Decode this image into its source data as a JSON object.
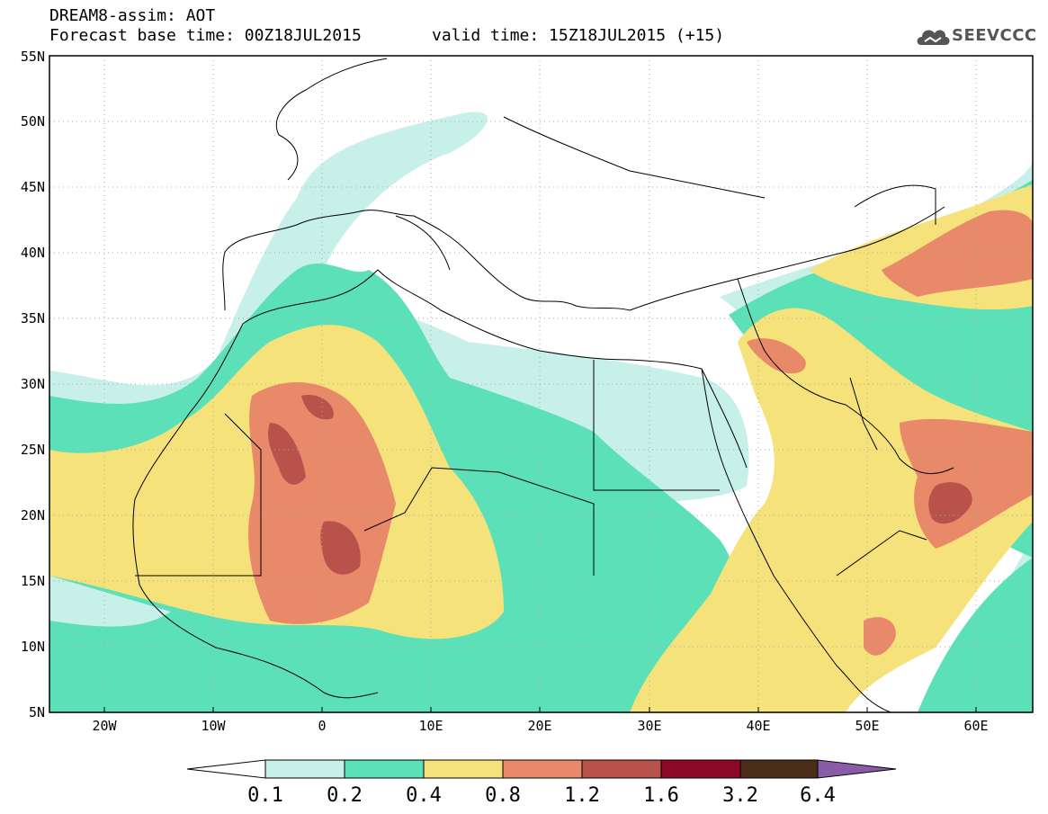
{
  "header": {
    "title": "DREAM8-assim: AOT",
    "base_time": "Forecast base time: 00Z18JUL2015",
    "valid_time": "valid time: 15Z18JUL2015 (+15)"
  },
  "logo": {
    "text": "SEEVCCC",
    "icon": "cloud-icon"
  },
  "axes": {
    "lat_labels": [
      "55N",
      "50N",
      "45N",
      "40N",
      "35N",
      "30N",
      "25N",
      "20N",
      "15N",
      "10N",
      "5N"
    ],
    "lon_labels": [
      "20W",
      "10W",
      "0",
      "10E",
      "20E",
      "30E",
      "40E",
      "50E",
      "60E"
    ]
  },
  "colorbar": {
    "labels": [
      "0.1",
      "0.2",
      "0.4",
      "0.8",
      "1.2",
      "1.6",
      "3.2",
      "6.4"
    ],
    "colors": [
      "#c6f0e8",
      "#5ce0b8",
      "#f5e27a",
      "#e8896a",
      "#b8524a",
      "#8c0a28",
      "#4a2e1a",
      "#8a5ca8"
    ]
  },
  "map_data": {
    "field": "AOT",
    "extent": {
      "lon": [
        -25,
        65
      ],
      "lat": [
        5,
        55
      ]
    }
  }
}
